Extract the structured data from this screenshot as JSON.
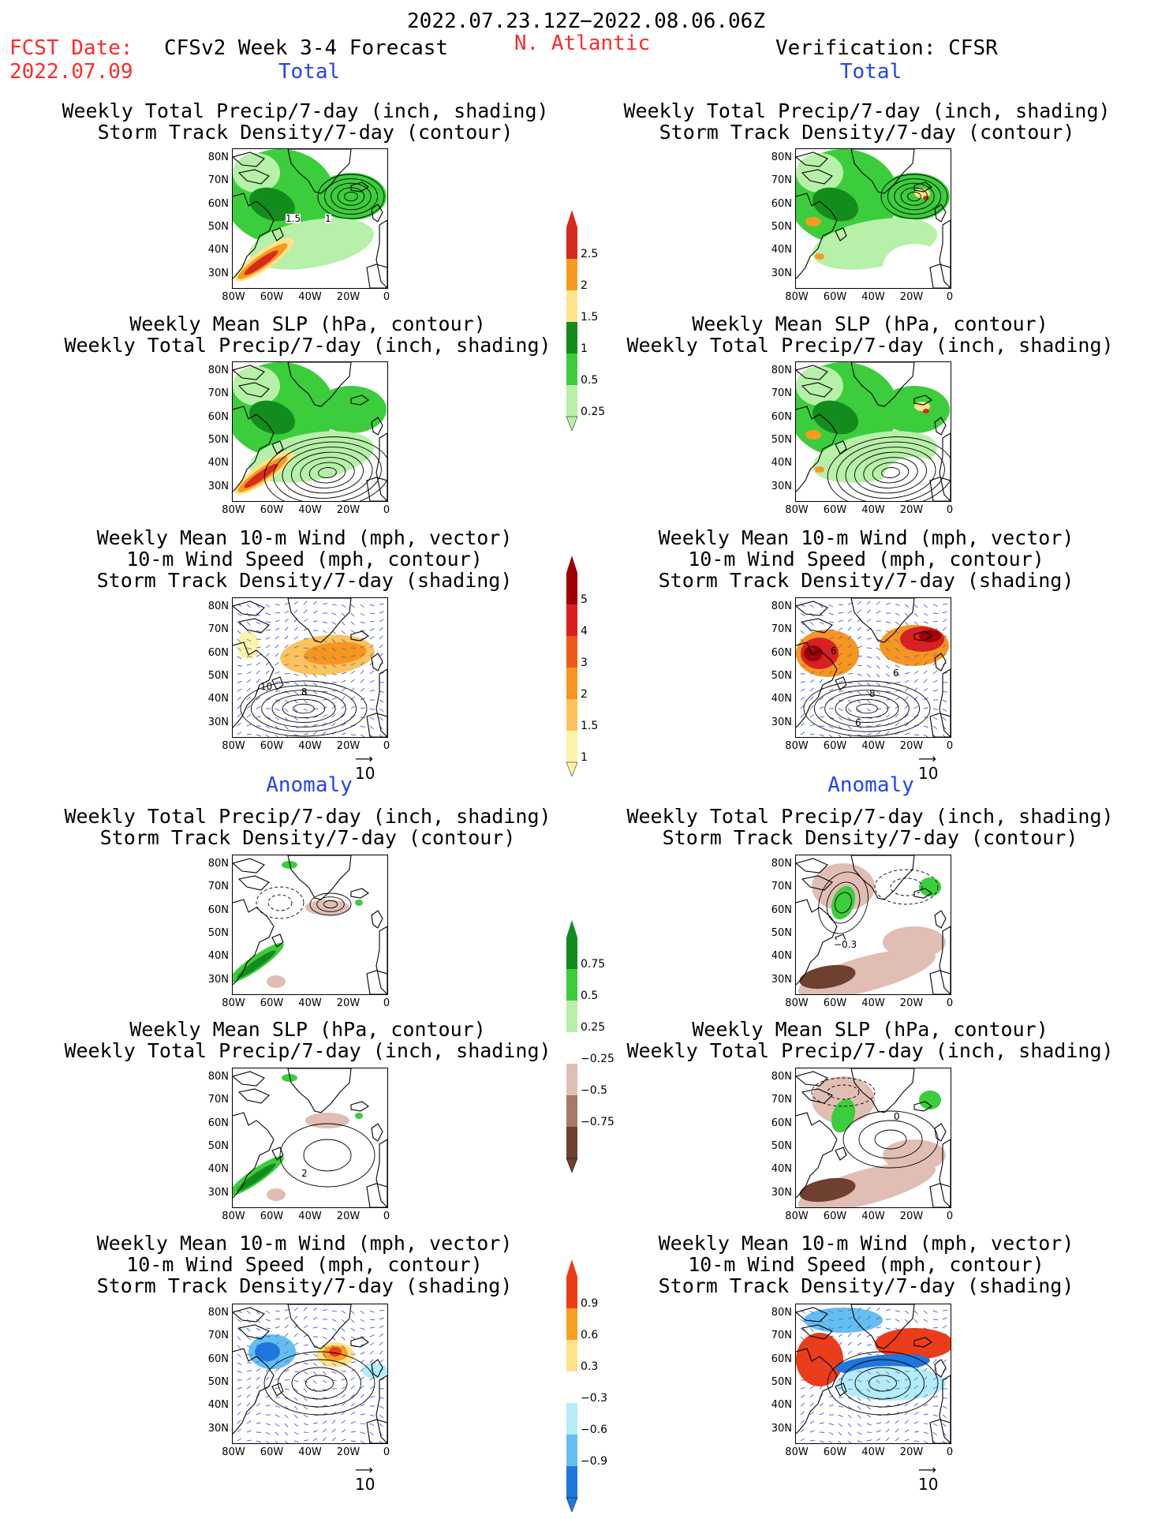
{
  "header": {
    "date_range": "2022.07.23.12Z−2022.08.06.06Z",
    "fcst_label": "FCST Date:",
    "fcst_date": "2022.07.09",
    "model": "CFSv2 Week 3-4 Forecast",
    "region": "N. Atlantic",
    "verification": "Verification: CFSR"
  },
  "sections": {
    "total": "Total",
    "anomaly": "Anomaly"
  },
  "titles": {
    "precip_track": [
      "Weekly Total Precip/7-day (inch, shading)",
      "Storm Track Density/7-day (contour)"
    ],
    "slp_precip": [
      "Weekly Mean SLP (hPa, contour)",
      "Weekly Total Precip/7-day (inch, shading)"
    ],
    "wind_track": [
      "Weekly Mean 10-m Wind (mph, vector)",
      "10-m Wind Speed (mph, contour)",
      "Storm Track Density/7-day (shading)"
    ]
  },
  "axes": {
    "lat_ticks": [
      "80N",
      "70N",
      "60N",
      "50N",
      "40N",
      "30N"
    ],
    "lon_ticks": [
      "80W",
      "60W",
      "40W",
      "20W",
      "0"
    ]
  },
  "vector_scale": "10",
  "colorbars": {
    "total_precip": {
      "labels": [
        "2.5",
        "2",
        "1.5",
        "1",
        "0.5",
        "0.25"
      ],
      "colors": [
        "#d62a1e",
        "#f79a1e",
        "#fde38a",
        "#138c1e",
        "#3ccd3c",
        "#b7f0a8"
      ]
    },
    "total_track": {
      "labels": [
        "5",
        "4",
        "3",
        "2",
        "1.5",
        "1"
      ],
      "colors": [
        "#a00000",
        "#dc1e1e",
        "#f05a14",
        "#f7961e",
        "#fbc35a",
        "#fdf3a8"
      ]
    },
    "anom_precip": {
      "labels": [
        "0.75",
        "0.5",
        "0.25",
        "−0.25",
        "−0.5",
        "−0.75"
      ],
      "colors": [
        "#138c1e",
        "#3ccd3c",
        "#b7f0a8",
        "#ffffff",
        "#e0beb4",
        "#a87868",
        "#6e4030"
      ]
    },
    "anom_track": {
      "labels": [
        "0.9",
        "0.6",
        "0.3",
        "−0.3",
        "−0.6",
        "−0.9"
      ],
      "colors": [
        "#f03c14",
        "#f7a01e",
        "#fde38a",
        "#ffffff",
        "#b4ecf8",
        "#64bef0",
        "#1e78dc"
      ]
    }
  },
  "contour_labels": {
    "fcst_total_track": [
      "1.5",
      "1"
    ],
    "fcst_total_wind": [
      "10",
      "8"
    ],
    "obs_total_wind": [
      "6",
      "6",
      "8",
      "6"
    ],
    "fcst_anom_slp": [
      "2"
    ],
    "obs_anom_precip": [
      "−0.3"
    ],
    "obs_anom_slp": [
      "0"
    ]
  }
}
